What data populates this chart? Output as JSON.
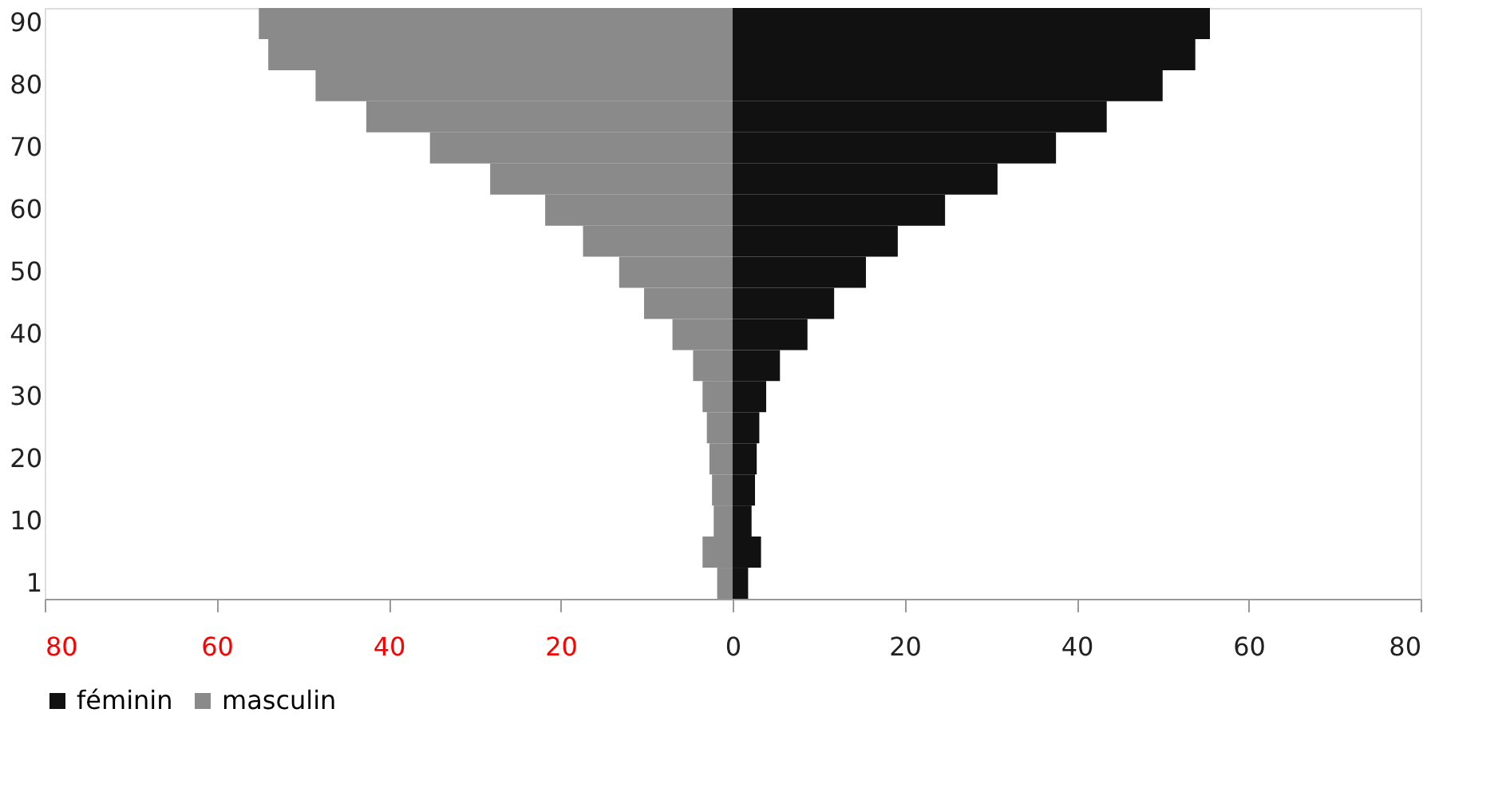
{
  "chart_data": {
    "type": "bar",
    "orientation": "horizontal",
    "categories": [
      "90",
      null,
      "80",
      null,
      "70",
      null,
      "60",
      null,
      "50",
      null,
      "40",
      null,
      "30",
      null,
      "20",
      null,
      "10",
      null,
      "1"
    ],
    "series": [
      {
        "name": "féminin",
        "color": "#111111",
        "values": [
          55.5,
          53.8,
          50,
          43.5,
          37.6,
          30.8,
          24.7,
          19.2,
          15.5,
          11.8,
          8.7,
          5.5,
          3.9,
          3.1,
          2.8,
          2.6,
          2.2,
          3.3,
          1.8
        ]
      },
      {
        "name": "masculin",
        "color": "#8a8a8a",
        "values": [
          -55.1,
          -54,
          -48.5,
          -42.6,
          -35.2,
          -28.2,
          -21.8,
          -17.4,
          -13.2,
          -10.3,
          -7.0,
          -4.6,
          -3.5,
          -3.0,
          -2.7,
          -2.4,
          -2.2,
          -3.5,
          -1.8
        ]
      }
    ],
    "xlim": [
      -80,
      80
    ],
    "xticks": [
      {
        "value": -80,
        "label": "80"
      },
      {
        "value": -60,
        "label": "60"
      },
      {
        "value": -40,
        "label": "40"
      },
      {
        "value": -20,
        "label": "20"
      },
      0,
      20,
      40,
      60,
      80
    ],
    "legend": "bottom",
    "grid": false,
    "stacked": true
  }
}
